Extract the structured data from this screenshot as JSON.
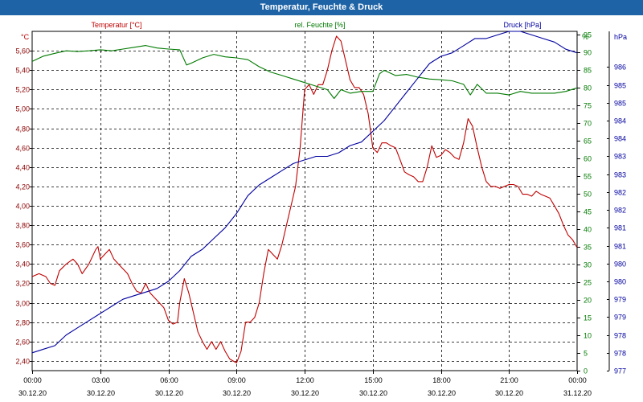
{
  "window": {
    "title": "Temperatur, Feuchte & Druck"
  },
  "colors": {
    "temperature": "#c00000",
    "humidity": "#007a00",
    "pressure": "#0000a0",
    "titlebar": "#1e63a6"
  },
  "chart_data": {
    "type": "line",
    "title": "Temperatur, Feuchte & Druck",
    "legend": [
      "Temperatur [°C]",
      "rel. Feuchte [%]",
      "Druck [hPa]"
    ],
    "x_axis": {
      "range_hours": [
        0,
        24
      ],
      "ticks": [
        {
          "time": "00:00",
          "date": "30.12.20"
        },
        {
          "time": "03:00",
          "date": "30.12.20"
        },
        {
          "time": "06:00",
          "date": "30.12.20"
        },
        {
          "time": "09:00",
          "date": "30.12.20"
        },
        {
          "time": "12:00",
          "date": "30.12.20"
        },
        {
          "time": "15:00",
          "date": "30.12.20"
        },
        {
          "time": "18:00",
          "date": "30.12.20"
        },
        {
          "time": "21:00",
          "date": "30.12.20"
        },
        {
          "time": "00:00",
          "date": "31.12.20"
        }
      ]
    },
    "axes": {
      "temperature": {
        "unit": "°C",
        "range": [
          2.3,
          5.8
        ],
        "tick_values": [
          2.4,
          2.6,
          2.8,
          3.0,
          3.2,
          3.4,
          3.6,
          3.8,
          4.0,
          4.2,
          4.4,
          4.6,
          4.8,
          5.0,
          5.2,
          5.4,
          5.6
        ],
        "tick_labels": [
          "2,40",
          "2,60",
          "2,80",
          "3,00",
          "3,20",
          "3,40",
          "3,60",
          "3,80",
          "4,00",
          "4,20",
          "4,40",
          "4,60",
          "4,80",
          "5,00",
          "5,20",
          "5,40",
          "5,60"
        ]
      },
      "humidity": {
        "unit": "%",
        "range": [
          0,
          96
        ],
        "tick_labels": [
          "0",
          "5",
          "10",
          "15",
          "20",
          "25",
          "30",
          "35",
          "40",
          "45",
          "50",
          "55",
          "60",
          "65",
          "70",
          "75",
          "80",
          "85",
          "90",
          "95"
        ]
      },
      "pressure": {
        "unit": "hPa",
        "range": [
          977.0,
          986.5
        ],
        "tick_labels": [
          "977",
          "978",
          "978",
          "979",
          "979",
          "980",
          "980",
          "981",
          "981",
          "982",
          "982",
          "983",
          "983",
          "984",
          "984",
          "985",
          "985",
          "986"
        ]
      }
    },
    "series": [
      {
        "name": "Temperatur [°C]",
        "axis": "temperature",
        "points": [
          [
            0,
            3.27
          ],
          [
            0.3,
            3.3
          ],
          [
            0.6,
            3.27
          ],
          [
            0.8,
            3.2
          ],
          [
            1.0,
            3.18
          ],
          [
            1.2,
            3.33
          ],
          [
            1.5,
            3.4
          ],
          [
            1.8,
            3.45
          ],
          [
            2.0,
            3.4
          ],
          [
            2.2,
            3.3
          ],
          [
            2.5,
            3.4
          ],
          [
            2.8,
            3.55
          ],
          [
            2.9,
            3.58
          ],
          [
            3.0,
            3.45
          ],
          [
            3.2,
            3.5
          ],
          [
            3.4,
            3.55
          ],
          [
            3.6,
            3.45
          ],
          [
            3.8,
            3.4
          ],
          [
            4.0,
            3.35
          ],
          [
            4.2,
            3.3
          ],
          [
            4.4,
            3.2
          ],
          [
            4.6,
            3.12
          ],
          [
            4.8,
            3.1
          ],
          [
            5.0,
            3.2
          ],
          [
            5.2,
            3.1
          ],
          [
            5.4,
            3.05
          ],
          [
            5.6,
            3.0
          ],
          [
            5.8,
            2.95
          ],
          [
            6.0,
            2.82
          ],
          [
            6.2,
            2.78
          ],
          [
            6.4,
            2.8
          ],
          [
            6.5,
            3.0
          ],
          [
            6.7,
            3.25
          ],
          [
            6.9,
            3.1
          ],
          [
            7.1,
            2.9
          ],
          [
            7.3,
            2.7
          ],
          [
            7.5,
            2.6
          ],
          [
            7.7,
            2.52
          ],
          [
            7.9,
            2.6
          ],
          [
            8.1,
            2.52
          ],
          [
            8.3,
            2.6
          ],
          [
            8.5,
            2.5
          ],
          [
            8.7,
            2.42
          ],
          [
            9.0,
            2.38
          ],
          [
            9.2,
            2.5
          ],
          [
            9.4,
            2.8
          ],
          [
            9.6,
            2.8
          ],
          [
            9.8,
            2.85
          ],
          [
            10.0,
            3.0
          ],
          [
            10.2,
            3.3
          ],
          [
            10.4,
            3.55
          ],
          [
            10.6,
            3.5
          ],
          [
            10.8,
            3.45
          ],
          [
            11.0,
            3.6
          ],
          [
            11.2,
            3.8
          ],
          [
            11.4,
            4.0
          ],
          [
            11.6,
            4.2
          ],
          [
            11.8,
            4.6
          ],
          [
            12.0,
            5.2
          ],
          [
            12.2,
            5.25
          ],
          [
            12.4,
            5.15
          ],
          [
            12.6,
            5.25
          ],
          [
            12.8,
            5.25
          ],
          [
            13.0,
            5.4
          ],
          [
            13.2,
            5.6
          ],
          [
            13.4,
            5.75
          ],
          [
            13.6,
            5.7
          ],
          [
            13.8,
            5.5
          ],
          [
            14.0,
            5.3
          ],
          [
            14.2,
            5.22
          ],
          [
            14.4,
            5.22
          ],
          [
            14.6,
            5.15
          ],
          [
            14.8,
            4.95
          ],
          [
            15.0,
            4.6
          ],
          [
            15.2,
            4.55
          ],
          [
            15.4,
            4.65
          ],
          [
            15.6,
            4.65
          ],
          [
            15.8,
            4.62
          ],
          [
            16.0,
            4.6
          ],
          [
            16.2,
            4.48
          ],
          [
            16.4,
            4.35
          ],
          [
            16.6,
            4.32
          ],
          [
            16.8,
            4.3
          ],
          [
            17.0,
            4.25
          ],
          [
            17.2,
            4.25
          ],
          [
            17.4,
            4.4
          ],
          [
            17.6,
            4.62
          ],
          [
            17.8,
            4.5
          ],
          [
            18.0,
            4.52
          ],
          [
            18.2,
            4.58
          ],
          [
            18.4,
            4.55
          ],
          [
            18.6,
            4.5
          ],
          [
            18.8,
            4.48
          ],
          [
            19.0,
            4.65
          ],
          [
            19.2,
            4.9
          ],
          [
            19.4,
            4.82
          ],
          [
            19.6,
            4.6
          ],
          [
            19.8,
            4.4
          ],
          [
            20.0,
            4.25
          ],
          [
            20.2,
            4.2
          ],
          [
            20.4,
            4.2
          ],
          [
            20.6,
            4.18
          ],
          [
            20.8,
            4.2
          ],
          [
            21.0,
            4.22
          ],
          [
            21.2,
            4.22
          ],
          [
            21.4,
            4.2
          ],
          [
            21.6,
            4.12
          ],
          [
            21.8,
            4.12
          ],
          [
            22.0,
            4.1
          ],
          [
            22.2,
            4.15
          ],
          [
            22.4,
            4.12
          ],
          [
            22.6,
            4.1
          ],
          [
            22.8,
            4.08
          ],
          [
            23.0,
            4.0
          ],
          [
            23.2,
            3.92
          ],
          [
            23.4,
            3.8
          ],
          [
            23.6,
            3.7
          ],
          [
            23.8,
            3.65
          ],
          [
            24.0,
            3.57
          ]
        ]
      },
      {
        "name": "rel. Feuchte [%]",
        "axis": "humidity",
        "points": [
          [
            0,
            87.5
          ],
          [
            0.5,
            89
          ],
          [
            1.0,
            89.8
          ],
          [
            1.5,
            90.5
          ],
          [
            2.0,
            90.3
          ],
          [
            2.5,
            90.5
          ],
          [
            3.0,
            90.8
          ],
          [
            3.5,
            90.5
          ],
          [
            4.0,
            91
          ],
          [
            4.5,
            91.5
          ],
          [
            5.0,
            92
          ],
          [
            5.5,
            91.3
          ],
          [
            6.0,
            91
          ],
          [
            6.5,
            90.8
          ],
          [
            6.8,
            86.5
          ],
          [
            7.0,
            87
          ],
          [
            7.5,
            88.5
          ],
          [
            8.0,
            89.5
          ],
          [
            8.5,
            88.8
          ],
          [
            9.0,
            88.5
          ],
          [
            9.5,
            88
          ],
          [
            10.0,
            86
          ],
          [
            10.5,
            84.5
          ],
          [
            11.0,
            83.5
          ],
          [
            11.5,
            82.5
          ],
          [
            12.0,
            81.5
          ],
          [
            12.5,
            80.5
          ],
          [
            13.0,
            79.5
          ],
          [
            13.3,
            77
          ],
          [
            13.6,
            79.5
          ],
          [
            14.0,
            78.5
          ],
          [
            14.5,
            79
          ],
          [
            15.0,
            79
          ],
          [
            15.3,
            84
          ],
          [
            15.5,
            85
          ],
          [
            16.0,
            83.5
          ],
          [
            16.5,
            83.8
          ],
          [
            17.0,
            83
          ],
          [
            17.5,
            82.5
          ],
          [
            18.0,
            82.3
          ],
          [
            18.5,
            82
          ],
          [
            19.0,
            81
          ],
          [
            19.3,
            78
          ],
          [
            19.6,
            81
          ],
          [
            20.0,
            78.5
          ],
          [
            20.5,
            78.5
          ],
          [
            21.0,
            78
          ],
          [
            21.5,
            79
          ],
          [
            22.0,
            78.5
          ],
          [
            22.5,
            78.5
          ],
          [
            23.0,
            78.5
          ],
          [
            23.5,
            79
          ],
          [
            24.0,
            80
          ]
        ]
      },
      {
        "name": "Druck [hPa]",
        "axis": "pressure",
        "points": [
          [
            0,
            977.5
          ],
          [
            0.5,
            977.6
          ],
          [
            1.0,
            977.7
          ],
          [
            1.5,
            978.0
          ],
          [
            2.0,
            978.2
          ],
          [
            2.5,
            978.4
          ],
          [
            3.0,
            978.6
          ],
          [
            3.5,
            978.8
          ],
          [
            4.0,
            979.0
          ],
          [
            4.5,
            979.1
          ],
          [
            5.0,
            979.2
          ],
          [
            5.5,
            979.3
          ],
          [
            6.0,
            979.5
          ],
          [
            6.5,
            979.8
          ],
          [
            7.0,
            980.2
          ],
          [
            7.5,
            980.4
          ],
          [
            8.0,
            980.7
          ],
          [
            8.5,
            981.0
          ],
          [
            9.0,
            981.4
          ],
          [
            9.5,
            981.9
          ],
          [
            10.0,
            982.2
          ],
          [
            10.5,
            982.4
          ],
          [
            11.0,
            982.6
          ],
          [
            11.5,
            982.8
          ],
          [
            12.0,
            982.9
          ],
          [
            12.5,
            983.0
          ],
          [
            13.0,
            983.0
          ],
          [
            13.5,
            983.1
          ],
          [
            14.0,
            983.3
          ],
          [
            14.5,
            983.4
          ],
          [
            15.0,
            983.7
          ],
          [
            15.5,
            984.0
          ],
          [
            16.0,
            984.4
          ],
          [
            16.5,
            984.8
          ],
          [
            17.0,
            985.2
          ],
          [
            17.5,
            985.6
          ],
          [
            18.0,
            985.8
          ],
          [
            18.5,
            985.9
          ],
          [
            19.0,
            986.1
          ],
          [
            19.5,
            986.3
          ],
          [
            20.0,
            986.3
          ],
          [
            20.5,
            986.4
          ],
          [
            21.0,
            986.5
          ],
          [
            21.5,
            986.5
          ],
          [
            22.0,
            986.4
          ],
          [
            22.5,
            986.3
          ],
          [
            23.0,
            986.2
          ],
          [
            23.5,
            986.0
          ],
          [
            24.0,
            985.9
          ]
        ]
      }
    ]
  }
}
